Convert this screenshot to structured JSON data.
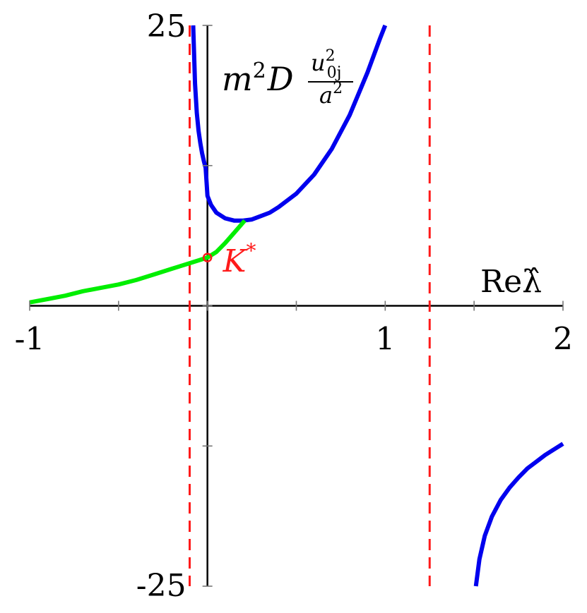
{
  "chart_data": {
    "type": "line",
    "xlabel": "Reλ̂",
    "ylabel": {
      "prefix": "m",
      "prefix_sup": "2",
      "mid": "D",
      "frac_num": "u",
      "frac_num_sup": "2",
      "frac_num_sub": "0j",
      "frac_den": "a",
      "frac_den_sup": "2"
    },
    "xlim": [
      -1,
      2
    ],
    "ylim": [
      -25,
      25
    ],
    "x_ticks": [
      -1,
      -0.5,
      0,
      0.5,
      1,
      1.5,
      2
    ],
    "x_tick_labels": [
      {
        "x": -1,
        "label": "-1"
      },
      {
        "x": 1,
        "label": "1"
      },
      {
        "x": 2,
        "label": "2"
      }
    ],
    "y_ticks": [
      -25,
      -12.5,
      0,
      12.5,
      25
    ],
    "y_tick_labels": [
      {
        "y": 25,
        "label": "25"
      },
      {
        "y": -25,
        "label": "-25"
      }
    ],
    "asymptotes": [
      -0.1,
      1.25
    ],
    "series": [
      {
        "color": "#0000ee",
        "points": [
          [
            -0.08,
            25
          ],
          [
            -0.07,
            19.8
          ],
          [
            -0.06,
            17.2
          ],
          [
            -0.05,
            15.6
          ],
          [
            -0.04,
            14.5
          ],
          [
            -0.03,
            13.6
          ],
          [
            -0.02,
            12.9
          ],
          [
            -0.01,
            12.3
          ],
          [
            0,
            9.8
          ],
          [
            0.02,
            9.0
          ],
          [
            0.05,
            8.3
          ],
          [
            0.1,
            7.8
          ],
          [
            0.15,
            7.6
          ],
          [
            0.2,
            7.6
          ],
          [
            0.25,
            7.7
          ],
          [
            0.3,
            8.0
          ],
          [
            0.35,
            8.3
          ],
          [
            0.4,
            8.8
          ],
          [
            0.5,
            10.0
          ],
          [
            0.6,
            11.7
          ],
          [
            0.7,
            14.0
          ],
          [
            0.8,
            17.0
          ],
          [
            0.9,
            20.8
          ],
          [
            0.97,
            23.8
          ],
          [
            1.0,
            25
          ]
        ]
      },
      {
        "color": "#0000ee",
        "points": [
          [
            1.51,
            -25
          ],
          [
            1.53,
            -22.6
          ],
          [
            1.56,
            -20.5
          ],
          [
            1.6,
            -18.8
          ],
          [
            1.65,
            -17.3
          ],
          [
            1.7,
            -16.2
          ],
          [
            1.75,
            -15.3
          ],
          [
            1.8,
            -14.5
          ],
          [
            1.85,
            -13.9
          ],
          [
            1.9,
            -13.3
          ],
          [
            1.95,
            -12.8
          ],
          [
            2.0,
            -12.3
          ]
        ]
      },
      {
        "color": "#00ee00",
        "points": [
          [
            -1,
            0.3
          ],
          [
            -0.9,
            0.6
          ],
          [
            -0.8,
            0.9
          ],
          [
            -0.7,
            1.3
          ],
          [
            -0.6,
            1.6
          ],
          [
            -0.5,
            1.9
          ],
          [
            -0.4,
            2.3
          ],
          [
            -0.3,
            2.8
          ],
          [
            -0.2,
            3.3
          ],
          [
            -0.1,
            3.8
          ],
          [
            0,
            4.3
          ],
          [
            0.05,
            4.8
          ],
          [
            0.1,
            5.6
          ],
          [
            0.15,
            6.5
          ],
          [
            0.21,
            7.6
          ]
        ]
      }
    ],
    "annotations": [
      {
        "label": "K",
        "sup": "*",
        "x": 0,
        "y": 4.3,
        "color": "#ff1a1a"
      }
    ],
    "grid": false
  }
}
